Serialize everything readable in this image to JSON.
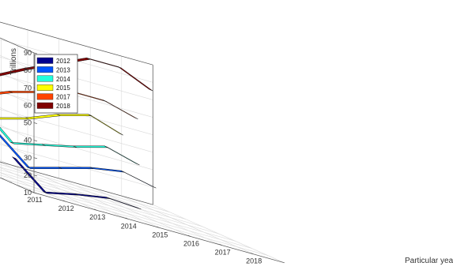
{
  "chart_data": {
    "type": "ribbon3d",
    "ylabel": "Trillions",
    "xlabel": "Particular year",
    "ylim": [
      10,
      90
    ],
    "yticks": [
      10,
      20,
      30,
      40,
      50,
      60,
      70,
      80,
      90
    ],
    "xticks": [
      "2011",
      "2012",
      "2013",
      "2014",
      "2015",
      "2016",
      "2017",
      "2018"
    ],
    "grid": true,
    "legend_position": "top-left",
    "series": [
      {
        "name": "2012",
        "color": "#00008f",
        "values": [
          {
            "x": 2011,
            "y": 25
          },
          {
            "x": 2012,
            "y": 10
          },
          {
            "x": 2013,
            "y": 14
          },
          {
            "x": 2014,
            "y": 17
          },
          {
            "x": 2015,
            "y": 16
          }
        ]
      },
      {
        "name": "2013",
        "color": "#0055ff",
        "values": [
          {
            "x": 2011,
            "y": 35
          },
          {
            "x": 2012,
            "y": 20
          },
          {
            "x": 2013,
            "y": 25
          },
          {
            "x": 2014,
            "y": 30
          },
          {
            "x": 2015,
            "y": 33
          },
          {
            "x": 2016,
            "y": 29
          }
        ]
      },
      {
        "name": "2014",
        "color": "#22ffdd",
        "values": [
          {
            "x": 2011,
            "y": 46
          },
          {
            "x": 2012,
            "y": 30
          },
          {
            "x": 2013,
            "y": 34
          },
          {
            "x": 2014,
            "y": 38
          },
          {
            "x": 2015,
            "y": 43
          },
          {
            "x": 2016,
            "y": 38
          }
        ]
      },
      {
        "name": "2015",
        "color": "#ffff00",
        "values": [
          {
            "x": 2011,
            "y": 56
          },
          {
            "x": 2012,
            "y": 40
          },
          {
            "x": 2013,
            "y": 45
          },
          {
            "x": 2014,
            "y": 52
          },
          {
            "x": 2015,
            "y": 57
          },
          {
            "x": 2016,
            "y": 51
          }
        ]
      },
      {
        "name": "2017",
        "color": "#ff4400",
        "values": [
          {
            "x": 2011,
            "y": 65
          },
          {
            "x": 2012,
            "y": 49
          },
          {
            "x": 2013,
            "y": 56
          },
          {
            "x": 2014,
            "y": 61
          },
          {
            "x": 2015,
            "y": 66
          },
          {
            "x": 2016,
            "y": 66
          },
          {
            "x": 2017,
            "y": 61
          }
        ]
      },
      {
        "name": "2018",
        "color": "#800000",
        "values": [
          {
            "x": 2011,
            "y": 76
          },
          {
            "x": 2012,
            "y": 57
          },
          {
            "x": 2013,
            "y": 61
          },
          {
            "x": 2014,
            "y": 70
          },
          {
            "x": 2015,
            "y": 78
          },
          {
            "x": 2016,
            "y": 86
          },
          {
            "x": 2017,
            "y": 86
          },
          {
            "x": 2018,
            "y": 78
          }
        ]
      }
    ]
  }
}
